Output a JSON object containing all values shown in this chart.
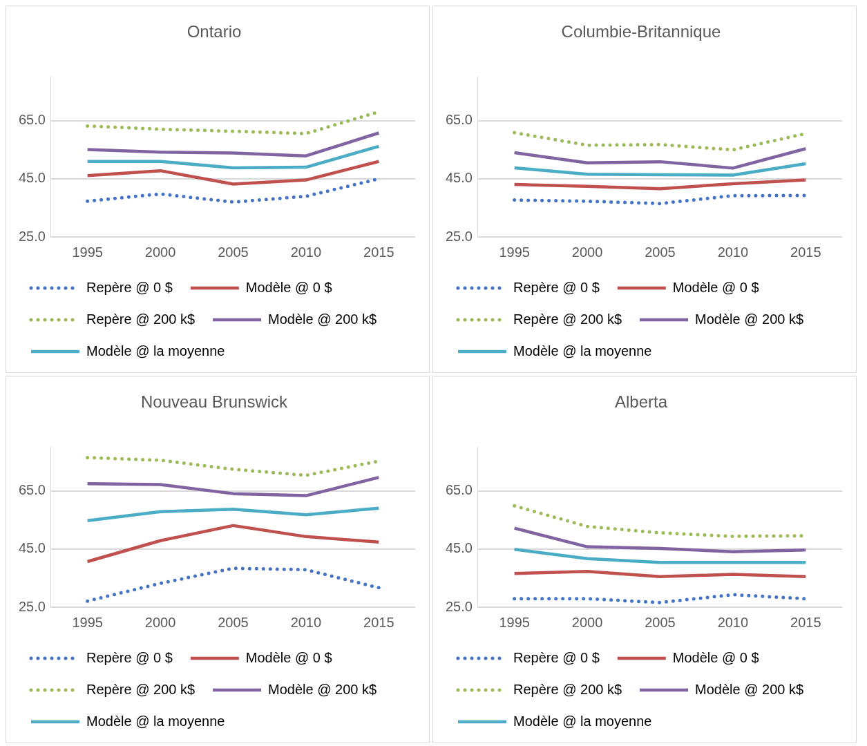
{
  "chart_data": [
    {
      "type": "line",
      "title": "Ontario",
      "categories": [
        "1995",
        "2000",
        "2005",
        "2010",
        "2015"
      ],
      "ylim": [
        25,
        80
      ],
      "yticks": [
        {
          "value": 25,
          "label": "25.0"
        },
        {
          "value": 45,
          "label": "45.0"
        },
        {
          "value": 65,
          "label": "65.0"
        }
      ],
      "grid": "y",
      "legend": "bottom",
      "marker": "none",
      "series": [
        {
          "name": "Repère @ 0 $",
          "color": "#4472c4",
          "line_style": "dotted",
          "values": [
            37.3,
            39.8,
            37.0,
            39.0,
            45.0
          ]
        },
        {
          "name": "Modèle @ 0 $",
          "color": "#c0504d",
          "line_style": "solid",
          "values": [
            46.1,
            47.8,
            43.2,
            44.6,
            51.0
          ]
        },
        {
          "name": "Repère @ 200 k$",
          "color": "#9bbb59",
          "line_style": "dotted",
          "values": [
            63.2,
            62.1,
            61.4,
            60.6,
            68.1
          ]
        },
        {
          "name": "Modèle @ 200 k$",
          "color": "#8064a2",
          "line_style": "solid",
          "values": [
            55.1,
            54.2,
            53.9,
            52.9,
            60.8
          ]
        },
        {
          "name": "Modèle @ la moyenne",
          "color": "#4bacc6",
          "line_style": "solid",
          "values": [
            51.0,
            51.0,
            48.8,
            49.0,
            56.2
          ]
        }
      ]
    },
    {
      "type": "line",
      "title": "Columbie-Britannique",
      "categories": [
        "1995",
        "2000",
        "2005",
        "2010",
        "2015"
      ],
      "ylim": [
        25,
        80
      ],
      "yticks": [
        {
          "value": 25,
          "label": "25.0"
        },
        {
          "value": 45,
          "label": "45.0"
        },
        {
          "value": 65,
          "label": "65.0"
        }
      ],
      "grid": "y",
      "legend": "bottom",
      "marker": "none",
      "series": [
        {
          "name": "Repère @ 0 $",
          "color": "#4472c4",
          "line_style": "dotted",
          "values": [
            37.7,
            37.3,
            36.5,
            39.2,
            39.3
          ]
        },
        {
          "name": "Modèle @ 0 $",
          "color": "#c0504d",
          "line_style": "solid",
          "values": [
            43.1,
            42.4,
            41.6,
            43.3,
            44.6
          ]
        },
        {
          "name": "Repère @ 200 k$",
          "color": "#9bbb59",
          "line_style": "dotted",
          "values": [
            60.9,
            56.6,
            56.8,
            55.0,
            60.6
          ]
        },
        {
          "name": "Modèle @ 200 k$",
          "color": "#8064a2",
          "line_style": "solid",
          "values": [
            54.0,
            50.5,
            50.9,
            48.7,
            55.4
          ]
        },
        {
          "name": "Modèle @ la moyenne",
          "color": "#4bacc6",
          "line_style": "solid",
          "values": [
            48.8,
            46.6,
            46.4,
            46.3,
            50.2
          ]
        }
      ]
    },
    {
      "type": "line",
      "title": "Nouveau Brunswick",
      "categories": [
        "1995",
        "2000",
        "2005",
        "2010",
        "2015"
      ],
      "ylim": [
        25,
        80
      ],
      "yticks": [
        {
          "value": 25,
          "label": "25.0"
        },
        {
          "value": 45,
          "label": "45.0"
        },
        {
          "value": 65,
          "label": "65.0"
        }
      ],
      "grid": "y",
      "legend": "bottom",
      "marker": "none",
      "series": [
        {
          "name": "Repère @ 0 $",
          "color": "#4472c4",
          "line_style": "dotted",
          "values": [
            27.1,
            33.2,
            38.4,
            37.9,
            31.7
          ]
        },
        {
          "name": "Modèle @ 0 $",
          "color": "#c0504d",
          "line_style": "solid",
          "values": [
            40.7,
            47.9,
            53.1,
            49.3,
            47.4
          ]
        },
        {
          "name": "Repère @ 200 k$",
          "color": "#9bbb59",
          "line_style": "dotted",
          "values": [
            76.5,
            75.6,
            72.5,
            70.4,
            75.3
          ]
        },
        {
          "name": "Modèle @ 200 k$",
          "color": "#8064a2",
          "line_style": "solid",
          "values": [
            67.5,
            67.2,
            64.1,
            63.4,
            69.7
          ]
        },
        {
          "name": "Modèle @ la moyenne",
          "color": "#4bacc6",
          "line_style": "solid",
          "values": [
            54.8,
            57.9,
            58.7,
            56.8,
            59.1
          ]
        }
      ]
    },
    {
      "type": "line",
      "title": "Alberta",
      "categories": [
        "1995",
        "2000",
        "2005",
        "2010",
        "2015"
      ],
      "ylim": [
        25,
        80
      ],
      "yticks": [
        {
          "value": 25,
          "label": "25.0"
        },
        {
          "value": 45,
          "label": "45.0"
        },
        {
          "value": 65,
          "label": "65.0"
        }
      ],
      "grid": "y",
      "legend": "bottom",
      "marker": "none",
      "series": [
        {
          "name": "Repère @ 0 $",
          "color": "#4472c4",
          "line_style": "dotted",
          "values": [
            27.9,
            27.9,
            26.6,
            29.3,
            27.9
          ]
        },
        {
          "name": "Modèle @ 0 $",
          "color": "#c0504d",
          "line_style": "solid",
          "values": [
            36.6,
            37.3,
            35.5,
            36.3,
            35.5
          ]
        },
        {
          "name": "Repère @ 200 k$",
          "color": "#9bbb59",
          "line_style": "dotted",
          "values": [
            59.9,
            52.8,
            50.6,
            49.4,
            49.6
          ]
        },
        {
          "name": "Modèle @ 200 k$",
          "color": "#8064a2",
          "line_style": "solid",
          "values": [
            52.2,
            45.8,
            45.2,
            44.1,
            44.7
          ]
        },
        {
          "name": "Modèle @ la moyenne",
          "color": "#4bacc6",
          "line_style": "solid",
          "values": [
            44.9,
            41.7,
            40.4,
            40.4,
            40.4
          ]
        }
      ]
    }
  ]
}
